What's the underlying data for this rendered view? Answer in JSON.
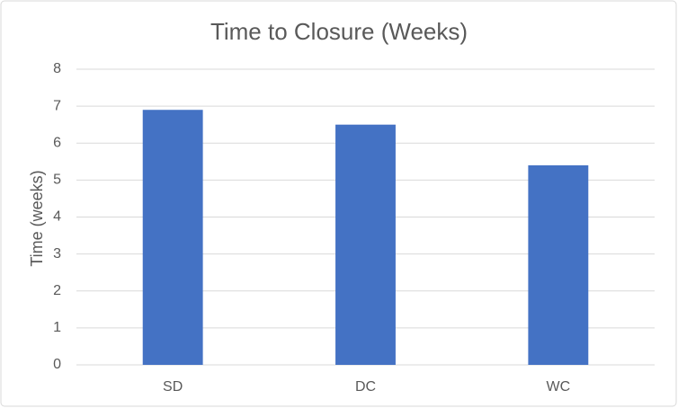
{
  "chart_data": {
    "type": "bar",
    "title": "Time to Closure (Weeks)",
    "y_label": "Time (weeks)",
    "categories": [
      "SD",
      "DC",
      "WC"
    ],
    "values": [
      6.9,
      6.5,
      5.4
    ],
    "color": "#4472c4",
    "ylim": [
      0,
      8
    ],
    "yticks": [
      0,
      1,
      2,
      3,
      4,
      5,
      6,
      7,
      8
    ],
    "grid": true
  }
}
